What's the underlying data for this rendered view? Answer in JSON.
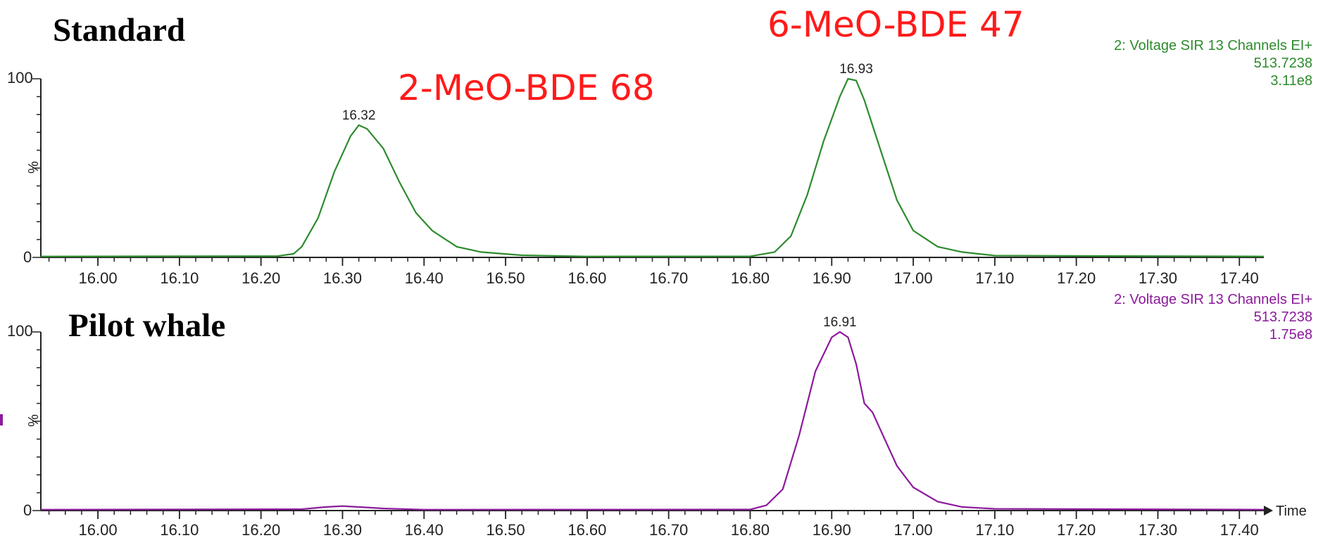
{
  "chart_data": [
    {
      "type": "line",
      "title": "Standard",
      "compound_labels": [
        "2-MeO-BDE 68",
        "6-MeO-BDE 47"
      ],
      "info": [
        "2: Voltage SIR 13 Channels EI+",
        "513.7238",
        "3.11e8"
      ],
      "color": "#2e8b2e",
      "ylabel": "%",
      "xlabel": "",
      "xlim": [
        15.93,
        17.43
      ],
      "ylim": [
        0,
        100
      ],
      "x_ticks": [
        "16.00",
        "16.10",
        "16.20",
        "16.30",
        "16.40",
        "16.50",
        "16.60",
        "16.70",
        "16.80",
        "16.90",
        "17.00",
        "17.10",
        "17.20",
        "17.30",
        "17.40"
      ],
      "y_ticks": [
        "0",
        "100"
      ],
      "peak_labels": [
        {
          "text": "16.32",
          "x": 16.32,
          "y": 74
        },
        {
          "text": "16.93",
          "x": 16.93,
          "y": 100
        }
      ],
      "series": [
        {
          "x": [
            15.93,
            16.22,
            16.24,
            16.25,
            16.27,
            16.29,
            16.31,
            16.32,
            16.33,
            16.35,
            16.37,
            16.39,
            16.41,
            16.44,
            16.47,
            16.52,
            16.6,
            16.8,
            16.83,
            16.85,
            16.87,
            16.89,
            16.91,
            16.92,
            16.93,
            16.94,
            16.96,
            16.98,
            17.0,
            17.03,
            17.06,
            17.1,
            17.43
          ],
          "y": [
            0.5,
            0.7,
            2,
            6,
            22,
            48,
            68,
            74,
            72,
            61,
            42,
            25,
            15,
            6,
            3,
            1.2,
            0.5,
            0.6,
            3,
            12,
            35,
            65,
            90,
            100,
            99,
            88,
            60,
            32,
            15,
            6,
            3,
            1,
            0.5
          ]
        }
      ]
    },
    {
      "type": "line",
      "title": "Pilot whale",
      "info": [
        "2: Voltage SIR 13 Channels EI+",
        "513.7238",
        "1.75e8"
      ],
      "color": "#8b1a9b",
      "ylabel": "%",
      "xlabel": "Time",
      "xlim": [
        15.93,
        17.43
      ],
      "ylim": [
        0,
        100
      ],
      "x_ticks": [
        "16.00",
        "16.10",
        "16.20",
        "16.30",
        "16.40",
        "16.50",
        "16.60",
        "16.70",
        "16.80",
        "16.90",
        "17.00",
        "17.10",
        "17.20",
        "17.30",
        "17.40"
      ],
      "y_ticks": [
        "0",
        "100"
      ],
      "peak_labels": [
        {
          "text": "16.91",
          "x": 16.91,
          "y": 100
        }
      ],
      "series": [
        {
          "x": [
            15.93,
            16.25,
            16.28,
            16.3,
            16.32,
            16.35,
            16.4,
            16.8,
            16.82,
            16.84,
            16.86,
            16.88,
            16.9,
            16.91,
            16.92,
            16.93,
            16.94,
            16.95,
            16.96,
            16.98,
            17.0,
            17.03,
            17.06,
            17.1,
            17.43
          ],
          "y": [
            0.5,
            0.8,
            2,
            2.5,
            2,
            1.2,
            0.5,
            0.6,
            3,
            12,
            42,
            78,
            97,
            100,
            97,
            82,
            60,
            55,
            45,
            25,
            13,
            5,
            2,
            1,
            0.5
          ]
        }
      ]
    }
  ]
}
